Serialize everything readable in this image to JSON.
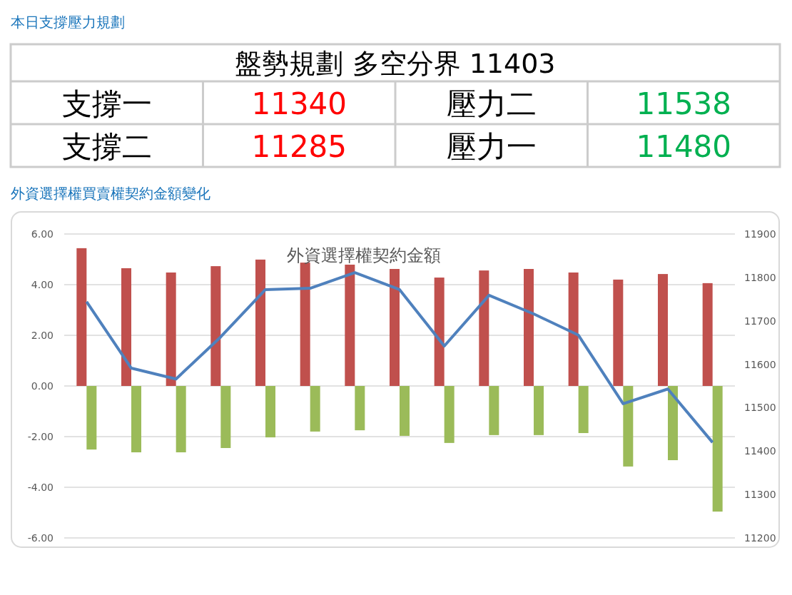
{
  "chart_data": [
    {
      "type": "other",
      "title": "本日支撐壓力規劃",
      "annotations": [
        "盤勢規劃 多空分界 11403",
        "支撐一",
        "11340",
        "壓力二",
        "11538",
        "支撐二",
        "11285",
        "壓力一",
        "11480"
      ]
    },
    {
      "type": "bar",
      "title": "外資選擇權買賣權契約金額變化",
      "subtitle": "外資選擇權契約金額",
      "categories": [
        null,
        null,
        null,
        null,
        null,
        null,
        null,
        null,
        null,
        null,
        null,
        null,
        null,
        null,
        null
      ],
      "series": [
        {
          "type": "bar",
          "color": "#c0504d",
          "values": [
            5.44,
            4.65,
            4.48,
            4.73,
            4.99,
            4.87,
            4.79,
            4.62,
            4.28,
            4.56,
            4.62,
            4.48,
            4.2,
            4.42,
            4.06
          ]
        },
        {
          "type": "bar",
          "color": "#9bbb59",
          "values": [
            -2.51,
            -2.62,
            -2.62,
            -2.45,
            -2.03,
            -1.8,
            -1.75,
            -1.97,
            -2.25,
            -1.94,
            -1.94,
            -1.86,
            -3.18,
            -2.93,
            -4.96
          ]
        },
        {
          "type": "line",
          "axis": "y2",
          "color": "#4f81bd",
          "values": [
            11744,
            11591,
            11566,
            11663,
            11772,
            11775,
            11811,
            11772,
            11642,
            11759,
            11716,
            11667,
            11509,
            11543,
            11420
          ]
        }
      ],
      "ylim": [
        -6,
        6
      ],
      "yticks": [
        {
          "value": -6,
          "label": "-6.00"
        },
        {
          "value": -4,
          "label": "-4.00"
        },
        {
          "value": -2,
          "label": "-2.00"
        },
        {
          "value": 0,
          "label": "0.00"
        },
        {
          "value": 2,
          "label": "2.00"
        },
        {
          "value": 4,
          "label": "4.00"
        },
        {
          "value": 6,
          "label": "6.00"
        }
      ],
      "y2lim": [
        11200,
        11900
      ],
      "y2ticks": [
        11200,
        11300,
        11400,
        11500,
        11600,
        11700,
        11800,
        11900
      ],
      "grid": "y",
      "marker": "none",
      "line_style": "solid"
    }
  ]
}
